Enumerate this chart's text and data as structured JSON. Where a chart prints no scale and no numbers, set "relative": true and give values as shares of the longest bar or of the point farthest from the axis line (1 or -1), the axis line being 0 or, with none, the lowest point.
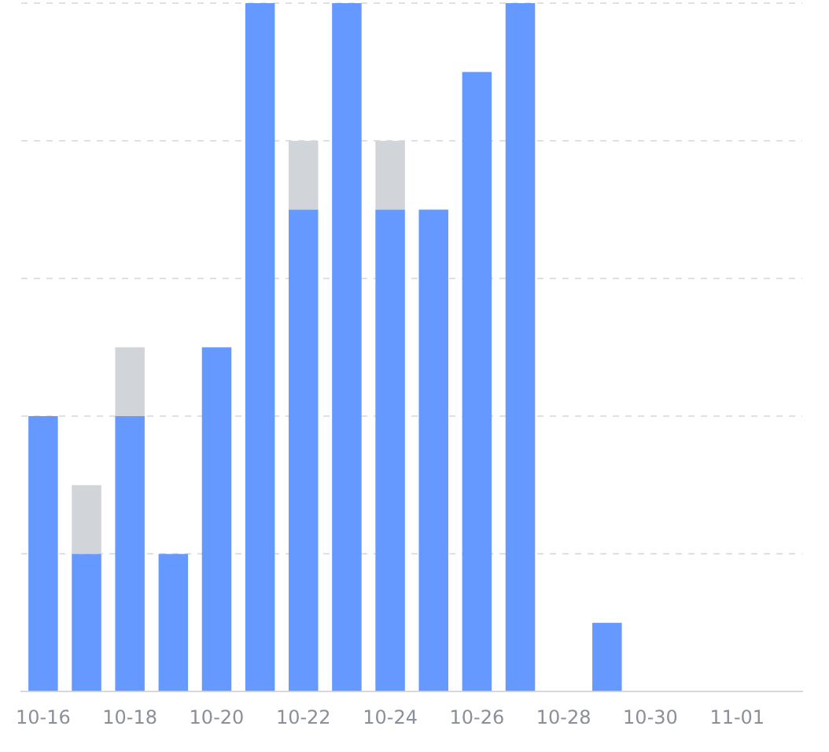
{
  "chart_data": {
    "type": "bar",
    "relative": true,
    "stacked": true,
    "grid": "y",
    "legend": false,
    "categories": [
      "10-16",
      null,
      "10-18",
      null,
      "10-20",
      null,
      "10-22",
      null,
      "10-24",
      null,
      "10-26",
      null,
      "10-28",
      null,
      "10-30",
      null,
      "11-01",
      null
    ],
    "series": [
      {
        "color": "#6699ff",
        "values": [
          0.4,
          0.2,
          0.4,
          0.2,
          0.5,
          1,
          0.7,
          1,
          0.7,
          0.7,
          0.9,
          1,
          0,
          0.1,
          0,
          0,
          0,
          0
        ]
      },
      {
        "color": "#d1d4d9",
        "values": [
          0,
          0.1,
          0.1,
          0,
          0,
          0,
          0.1,
          0,
          0.1,
          0,
          0,
          0,
          0,
          0,
          0,
          0,
          0,
          0
        ]
      }
    ]
  }
}
